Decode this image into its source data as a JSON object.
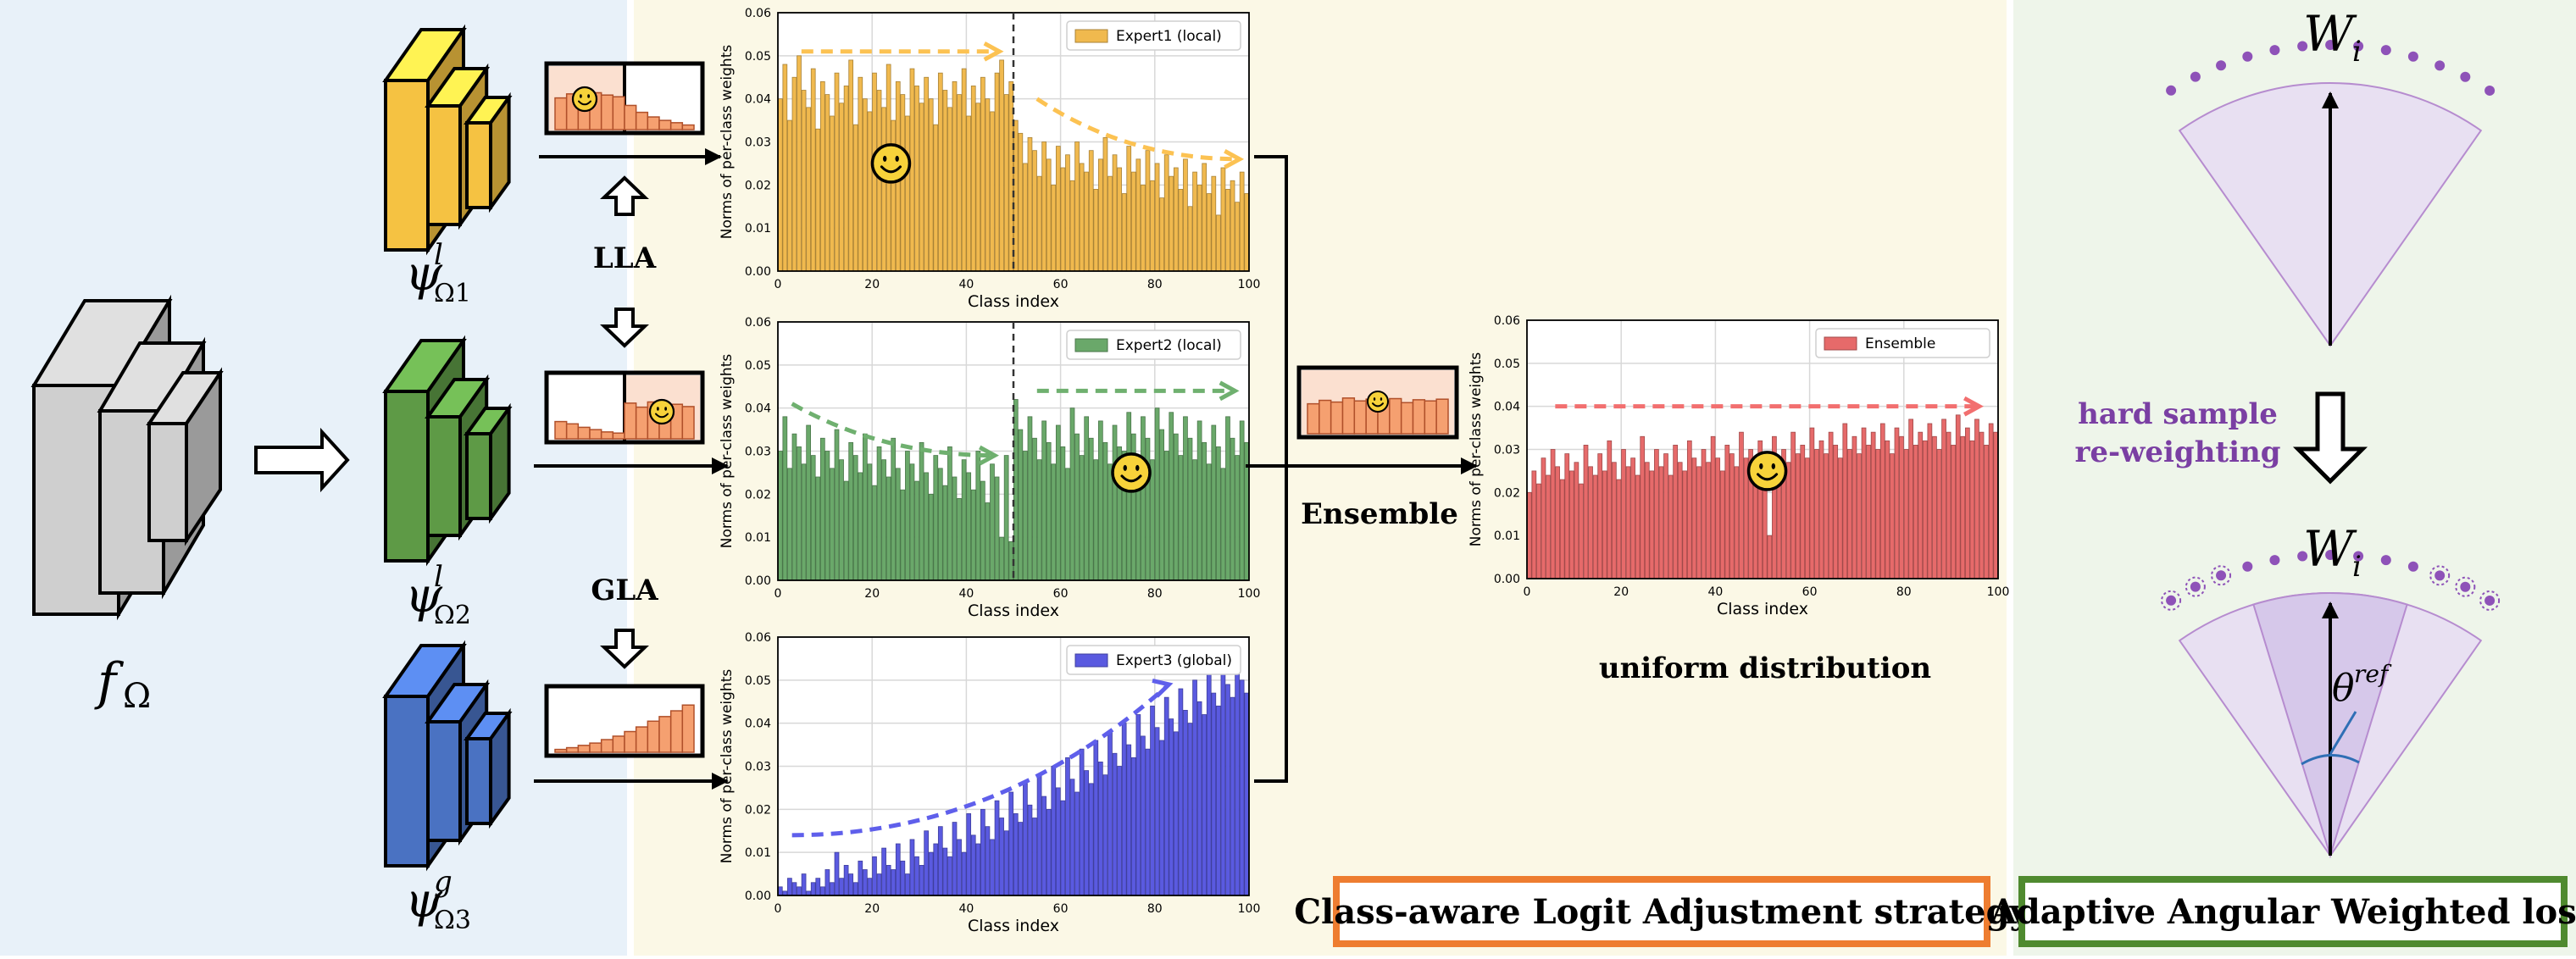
{
  "labels": {
    "backbone": "f",
    "backbone_sub": "Ω",
    "expert1": "ψ",
    "expert1_sup": "l",
    "expert1_sub": "Ω1",
    "expert2": "ψ",
    "expert2_sup": "l",
    "expert2_sub": "Ω2",
    "expert3": "ψ",
    "expert3_sup": "g",
    "expert3_sub": "Ω3",
    "lla": "LLA",
    "gla": "GLA",
    "ensemble": "Ensemble",
    "uniform": "uniform distribution",
    "hard_sample": "hard sample",
    "reweighting": "re-weighting",
    "w_top": "W",
    "w_top_sub": "i",
    "w_bottom": "W",
    "w_bottom_sub": "i",
    "theta": "θ",
    "theta_sup": "ref",
    "box_class_aware": "Class-aware Logit Adjustment strategy",
    "box_adaptive": "Adaptive Angular Weighted loss"
  },
  "colors": {
    "left_panel": "#e8f1f9",
    "mid_panel": "#fbf8e6",
    "right_panel": "#eef5ea",
    "expert1": "#f5c242",
    "expert2": "#5e9a46",
    "expert3": "#4a72c2",
    "ensemble": "#e86b6b",
    "orange_box": "#ee7d30",
    "green_box": "#4f8a2f",
    "purple": "#7a3fa3"
  },
  "chart_data": [
    {
      "type": "bar",
      "legend": "Expert1 (local)",
      "xlabel": "Class index",
      "ylabel": "Norms of per-class weights",
      "xticks": [
        "0",
        "20",
        "40",
        "60",
        "80",
        "100"
      ],
      "yticks": [
        "0.00",
        "0.01",
        "0.02",
        "0.03",
        "0.04",
        "0.05",
        "0.06"
      ],
      "xlim": [
        0,
        100
      ],
      "ylim": [
        0,
        0.06
      ],
      "vline": 50,
      "color": "#f0b94e",
      "values": [
        0.04,
        0.048,
        0.035,
        0.045,
        0.05,
        0.042,
        0.038,
        0.047,
        0.033,
        0.044,
        0.041,
        0.036,
        0.046,
        0.039,
        0.043,
        0.049,
        0.034,
        0.045,
        0.04,
        0.037,
        0.046,
        0.042,
        0.038,
        0.048,
        0.035,
        0.044,
        0.041,
        0.036,
        0.047,
        0.043,
        0.039,
        0.045,
        0.04,
        0.034,
        0.046,
        0.042,
        0.038,
        0.044,
        0.041,
        0.047,
        0.036,
        0.043,
        0.039,
        0.045,
        0.04,
        0.037,
        0.046,
        0.049,
        0.041,
        0.044,
        0.035,
        0.032,
        0.025,
        0.031,
        0.028,
        0.022,
        0.03,
        0.026,
        0.02,
        0.029,
        0.024,
        0.027,
        0.021,
        0.03,
        0.025,
        0.023,
        0.028,
        0.019,
        0.026,
        0.031,
        0.022,
        0.027,
        0.024,
        0.018,
        0.029,
        0.023,
        0.026,
        0.02,
        0.028,
        0.021,
        0.025,
        0.017,
        0.027,
        0.022,
        0.024,
        0.019,
        0.026,
        0.015,
        0.023,
        0.02,
        0.025,
        0.018,
        0.022,
        0.013,
        0.024,
        0.019,
        0.021,
        0.016,
        0.023,
        0.018
      ],
      "arrows": [
        {
          "from": [
            5,
            0.051
          ],
          "to": [
            47,
            0.051
          ],
          "curve": 0
        },
        {
          "from": [
            55,
            0.04
          ],
          "to": [
            98,
            0.026
          ],
          "curve": 1
        }
      ],
      "smiley_at": [
        24,
        0.025
      ]
    },
    {
      "type": "bar",
      "legend": "Expert2 (local)",
      "xlabel": "Class index",
      "ylabel": "Norms of per-class weights",
      "xticks": [
        "0",
        "20",
        "40",
        "60",
        "80",
        "100"
      ],
      "yticks": [
        "0.00",
        "0.01",
        "0.02",
        "0.03",
        "0.04",
        "0.05",
        "0.06"
      ],
      "xlim": [
        0,
        100
      ],
      "ylim": [
        0,
        0.06
      ],
      "vline": 50,
      "color": "#6aa86a",
      "values": [
        0.03,
        0.038,
        0.026,
        0.034,
        0.031,
        0.027,
        0.036,
        0.029,
        0.024,
        0.033,
        0.03,
        0.026,
        0.035,
        0.028,
        0.023,
        0.032,
        0.029,
        0.025,
        0.034,
        0.027,
        0.022,
        0.031,
        0.028,
        0.024,
        0.033,
        0.026,
        0.021,
        0.03,
        0.027,
        0.023,
        0.032,
        0.025,
        0.02,
        0.029,
        0.026,
        0.022,
        0.031,
        0.024,
        0.019,
        0.028,
        0.025,
        0.021,
        0.03,
        0.023,
        0.018,
        0.027,
        0.024,
        0.01,
        0.029,
        0.009,
        0.042,
        0.035,
        0.03,
        0.038,
        0.033,
        0.028,
        0.037,
        0.032,
        0.027,
        0.036,
        0.031,
        0.026,
        0.04,
        0.034,
        0.029,
        0.038,
        0.033,
        0.028,
        0.037,
        0.032,
        0.027,
        0.036,
        0.031,
        0.03,
        0.039,
        0.034,
        0.029,
        0.038,
        0.033,
        0.028,
        0.04,
        0.035,
        0.03,
        0.039,
        0.034,
        0.029,
        0.038,
        0.033,
        0.028,
        0.037,
        0.032,
        0.027,
        0.036,
        0.031,
        0.026,
        0.038,
        0.033,
        0.029,
        0.037,
        0.032
      ],
      "arrows": [
        {
          "from": [
            3,
            0.041
          ],
          "to": [
            46,
            0.029
          ],
          "curve": 1
        },
        {
          "from": [
            55,
            0.044
          ],
          "to": [
            97,
            0.044
          ],
          "curve": 0
        }
      ],
      "smiley_at": [
        75,
        0.025
      ]
    },
    {
      "type": "bar",
      "legend": "Expert3 (global)",
      "xlabel": "Class index",
      "ylabel": "Norms of per-class weights",
      "xticks": [
        "0",
        "20",
        "40",
        "60",
        "80",
        "100"
      ],
      "yticks": [
        "0.00",
        "0.01",
        "0.02",
        "0.03",
        "0.04",
        "0.05",
        "0.06"
      ],
      "xlim": [
        0,
        100
      ],
      "ylim": [
        0,
        0.06
      ],
      "vline": null,
      "color": "#5a5ae0",
      "values": [
        0.002,
        0.001,
        0.004,
        0.003,
        0.002,
        0.005,
        0.001,
        0.003,
        0.004,
        0.002,
        0.006,
        0.003,
        0.01,
        0.004,
        0.007,
        0.005,
        0.003,
        0.008,
        0.006,
        0.004,
        0.009,
        0.005,
        0.011,
        0.007,
        0.006,
        0.012,
        0.008,
        0.005,
        0.013,
        0.009,
        0.007,
        0.015,
        0.01,
        0.012,
        0.016,
        0.011,
        0.009,
        0.017,
        0.013,
        0.01,
        0.019,
        0.014,
        0.012,
        0.02,
        0.016,
        0.013,
        0.022,
        0.018,
        0.015,
        0.024,
        0.019,
        0.017,
        0.026,
        0.021,
        0.018,
        0.028,
        0.023,
        0.02,
        0.03,
        0.025,
        0.022,
        0.032,
        0.027,
        0.024,
        0.034,
        0.029,
        0.026,
        0.036,
        0.031,
        0.028,
        0.038,
        0.033,
        0.03,
        0.04,
        0.035,
        0.032,
        0.042,
        0.037,
        0.034,
        0.044,
        0.039,
        0.036,
        0.046,
        0.041,
        0.038,
        0.048,
        0.043,
        0.04,
        0.05,
        0.045,
        0.042,
        0.052,
        0.047,
        0.044,
        0.054,
        0.049,
        0.046,
        0.055,
        0.05,
        0.047
      ],
      "arrows": [
        {
          "from": [
            3,
            0.014
          ],
          "to": [
            83,
            0.049
          ],
          "curve": -1
        }
      ],
      "smiley_at": null
    },
    {
      "type": "bar",
      "legend": "Ensemble",
      "xlabel": "Class index",
      "ylabel": "Norms of per-class weights",
      "xticks": [
        "0",
        "20",
        "40",
        "60",
        "80",
        "100"
      ],
      "yticks": [
        "0.00",
        "0.01",
        "0.02",
        "0.03",
        "0.04",
        "0.05",
        "0.06"
      ],
      "xlim": [
        0,
        100
      ],
      "ylim": [
        0,
        0.06
      ],
      "vline": null,
      "color": "#e66a6a",
      "values": [
        0.02,
        0.025,
        0.022,
        0.028,
        0.024,
        0.03,
        0.026,
        0.023,
        0.029,
        0.025,
        0.027,
        0.022,
        0.031,
        0.026,
        0.024,
        0.029,
        0.025,
        0.032,
        0.027,
        0.023,
        0.03,
        0.026,
        0.028,
        0.024,
        0.033,
        0.027,
        0.025,
        0.03,
        0.026,
        0.029,
        0.024,
        0.031,
        0.027,
        0.025,
        0.032,
        0.028,
        0.026,
        0.03,
        0.027,
        0.033,
        0.028,
        0.025,
        0.031,
        0.029,
        0.026,
        0.034,
        0.028,
        0.03,
        0.027,
        0.032,
        0.029,
        0.01,
        0.033,
        0.028,
        0.03,
        0.027,
        0.034,
        0.029,
        0.031,
        0.028,
        0.035,
        0.03,
        0.032,
        0.029,
        0.034,
        0.031,
        0.028,
        0.036,
        0.03,
        0.033,
        0.029,
        0.035,
        0.031,
        0.034,
        0.03,
        0.036,
        0.032,
        0.029,
        0.035,
        0.033,
        0.03,
        0.037,
        0.031,
        0.034,
        0.032,
        0.036,
        0.033,
        0.03,
        0.037,
        0.034,
        0.031,
        0.038,
        0.033,
        0.035,
        0.032,
        0.037,
        0.034,
        0.031,
        0.036,
        0.034
      ],
      "arrows": [
        {
          "from": [
            6,
            0.04
          ],
          "to": [
            96,
            0.04
          ],
          "curve": 0
        }
      ],
      "smiley_at": [
        51,
        0.025
      ]
    }
  ],
  "mini_histograms": [
    {
      "bars": [
        0.55,
        0.62,
        0.58,
        0.64,
        0.6,
        0.57,
        0.42,
        0.3,
        0.22,
        0.16,
        0.12,
        0.08
      ],
      "highlight": "left"
    },
    {
      "bars": [
        0.3,
        0.26,
        0.2,
        0.16,
        0.12,
        0.1,
        0.62,
        0.55,
        0.64,
        0.58,
        0.6,
        0.56
      ],
      "highlight": "right"
    },
    {
      "bars": [
        0.05,
        0.08,
        0.12,
        0.16,
        0.22,
        0.28,
        0.36,
        0.44,
        0.54,
        0.62,
        0.72,
        0.82
      ],
      "highlight": "none"
    },
    {
      "bars": [
        0.52,
        0.58,
        0.55,
        0.62,
        0.57,
        0.6,
        0.56,
        0.61,
        0.54,
        0.59,
        0.57,
        0.6
      ],
      "highlight": "all"
    }
  ]
}
